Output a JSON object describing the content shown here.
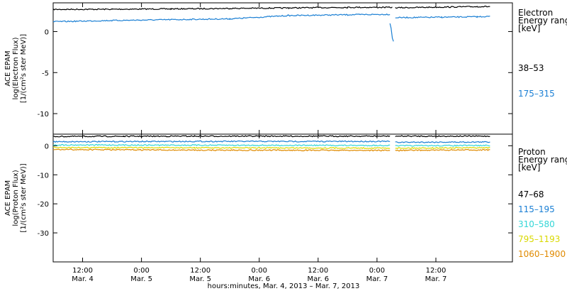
{
  "chart_data": [
    {
      "type": "line",
      "panel": "electron",
      "ylabel_lines": [
        "ACE EPAM",
        "log(Electron Flux)",
        "[1/(cm²s ster MeV)]"
      ],
      "ylim": [
        -12.5,
        3.5
      ],
      "yticks": [
        0,
        -5,
        -10
      ],
      "legend_title_lines": [
        "Electron",
        "Energy ranges",
        "[keV]"
      ],
      "series": [
        {
          "name": "38–53",
          "color": "#000000",
          "segments": [
            [
              [
                0.0,
                2.7
              ],
              [
                0.5,
                2.72
              ],
              [
                1.0,
                2.76
              ],
              [
                1.5,
                2.82
              ],
              [
                2.0,
                2.88
              ],
              [
                2.5,
                2.95
              ],
              [
                2.88,
                2.95
              ]
            ],
            [
              [
                2.905,
                2.9
              ],
              [
                3.3,
                2.98
              ],
              [
                3.6,
                3.04
              ],
              [
                3.71,
                3.05
              ]
            ]
          ]
        },
        {
          "name": "175–315",
          "color": "#1a7fd4",
          "segments": [
            [
              [
                0.0,
                1.2
              ],
              [
                0.5,
                1.35
              ],
              [
                1.0,
                1.45
              ],
              [
                1.5,
                1.55
              ],
              [
                2.0,
                1.95
              ],
              [
                2.5,
                2.05
              ],
              [
                2.86,
                2.1
              ]
            ],
            [
              [
                2.86,
                1.0
              ],
              [
                2.87,
                0.4
              ],
              [
                2.88,
                -0.8
              ],
              [
                2.89,
                -1.2
              ]
            ],
            [
              [
                2.905,
                1.7
              ],
              [
                3.3,
                1.75
              ],
              [
                3.6,
                1.8
              ],
              [
                3.71,
                1.85
              ]
            ]
          ]
        }
      ]
    },
    {
      "type": "line",
      "panel": "proton",
      "ylabel_lines": [
        "ACE EPAM",
        "log(Proton Flux)",
        "[1/(cm²s ster MeV)]"
      ],
      "ylim": [
        -40,
        4
      ],
      "yticks": [
        0,
        -10,
        -20,
        -30
      ],
      "legend_title_lines": [
        "Proton",
        "Energy ranges",
        "[keV]"
      ],
      "series": [
        {
          "name": "47–68",
          "color": "#000000",
          "segments": [
            [
              [
                0.0,
                3.2
              ],
              [
                0.6,
                3.25
              ],
              [
                1.2,
                3.3
              ],
              [
                2.86,
                3.3
              ]
            ],
            [
              [
                2.905,
                3.3
              ],
              [
                3.71,
                3.3
              ]
            ]
          ]
        },
        {
          "name": "115–195",
          "color": "#1a7fd4",
          "segments": [
            [
              [
                0.0,
                1.4
              ],
              [
                1.2,
                1.5
              ],
              [
                2.86,
                1.5
              ]
            ],
            [
              [
                2.905,
                1.2
              ],
              [
                3.71,
                1.3
              ]
            ]
          ]
        },
        {
          "name": "310–580",
          "color": "#33d6d6",
          "segments": [
            [
              [
                0.0,
                0.3
              ],
              [
                1.2,
                0.2
              ],
              [
                2.86,
                0.1
              ]
            ],
            [
              [
                2.905,
                0.0
              ],
              [
                3.71,
                0.1
              ]
            ]
          ]
        },
        {
          "name": "795–1193",
          "color": "#d9d900",
          "segments": [
            [
              [
                0.0,
                -0.6
              ],
              [
                1.2,
                -0.7
              ],
              [
                2.86,
                -0.8
              ]
            ],
            [
              [
                2.905,
                -0.8
              ],
              [
                3.71,
                -0.7
              ]
            ]
          ]
        },
        {
          "name": "1060–1900",
          "color": "#e08a00",
          "segments": [
            [
              [
                0.0,
                -1.3
              ],
              [
                1.2,
                -1.5
              ],
              [
                2.86,
                -1.6
              ]
            ],
            [
              [
                2.905,
                -1.6
              ],
              [
                3.71,
                -1.4
              ]
            ]
          ]
        }
      ]
    }
  ],
  "xaxis": {
    "range_days": [
      0.0,
      3.9
    ],
    "label": "hours:minutes, Mar. 4, 2013 – Mar. 7, 2013",
    "ticks": [
      {
        "pos": 0.25,
        "time": "12:00",
        "date": "Mar. 4"
      },
      {
        "pos": 0.75,
        "time": "0:00",
        "date": "Mar. 5"
      },
      {
        "pos": 1.25,
        "time": "12:00",
        "date": "Mar. 5"
      },
      {
        "pos": 1.75,
        "time": "0:00",
        "date": "Mar. 6"
      },
      {
        "pos": 2.25,
        "time": "12:00",
        "date": "Mar. 6"
      },
      {
        "pos": 2.75,
        "time": "0:00",
        "date": "Mar. 7"
      },
      {
        "pos": 3.25,
        "time": "12:00",
        "date": "Mar. 7"
      }
    ]
  }
}
